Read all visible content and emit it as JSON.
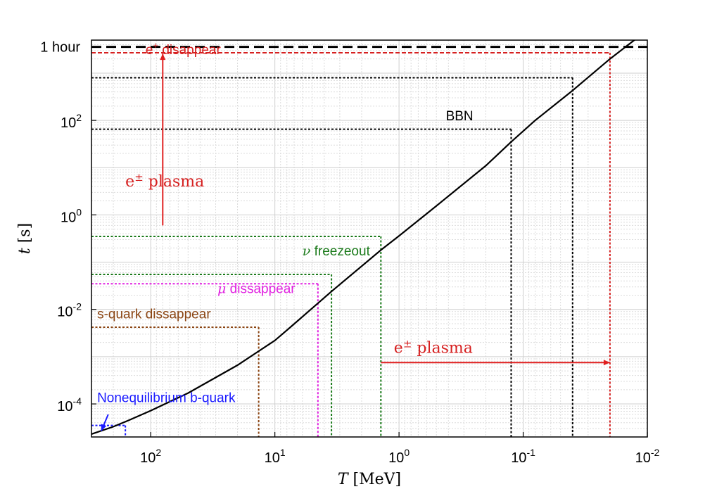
{
  "chart_data": {
    "type": "line",
    "title": "",
    "xlabel": "T [MeV]",
    "ylabel": "t [s]",
    "xscale": "log",
    "yscale": "log",
    "x_reversed": true,
    "xlim": [
      300,
      0.01
    ],
    "ylim": [
      2e-05,
      5000
    ],
    "grid": true,
    "x_ticks": [
      {
        "value": 100,
        "base": "10",
        "exp": "2"
      },
      {
        "value": 10,
        "base": "10",
        "exp": "1"
      },
      {
        "value": 1,
        "base": "10",
        "exp": "0"
      },
      {
        "value": 0.1,
        "base": "10",
        "exp": "-1"
      },
      {
        "value": 0.01,
        "base": "10",
        "exp": "-2"
      }
    ],
    "y_ticks": [
      {
        "value": 0.0001,
        "base": "10",
        "exp": "-4"
      },
      {
        "value": 0.01,
        "base": "10",
        "exp": "-2"
      },
      {
        "value": 1,
        "base": "10",
        "exp": "0"
      },
      {
        "value": 100,
        "base": "10",
        "exp": "2"
      },
      {
        "value": 3600,
        "label": "1 hour"
      }
    ],
    "series": [
      {
        "color": "#000000",
        "x": [
          300,
          200,
          150,
          100,
          50,
          20,
          10,
          7.5,
          3.5,
          1.4,
          1,
          0.5,
          0.2,
          0.125,
          0.08,
          0.04,
          0.02,
          0.013,
          0.01
        ],
        "y": [
          2.3e-05,
          3.3e-05,
          4.5e-05,
          7.2e-05,
          0.00017,
          0.00066,
          0.0022,
          0.0042,
          0.024,
          0.18,
          0.36,
          1.55,
          11,
          35,
          100,
          430,
          2000,
          4800,
          8000
        ]
      }
    ],
    "reference_lines": [
      {
        "kind": "h",
        "y": 3600,
        "style": "dashed",
        "color": "#000000",
        "width": 3
      },
      {
        "kind": "h",
        "y": 2700,
        "x_to": 0.02,
        "style": "dashed",
        "color": "#d62020"
      },
      {
        "kind": "v",
        "x": 0.02,
        "y_to": 2700,
        "style": "dotted",
        "color": "#d62020"
      },
      {
        "kind": "h",
        "y": 800,
        "x_to": 0.04,
        "style": "dotted",
        "color": "#000000"
      },
      {
        "kind": "v",
        "x": 0.04,
        "y_to": 800,
        "style": "dotted",
        "color": "#000000"
      },
      {
        "kind": "h",
        "y": 65,
        "x_to": 0.125,
        "style": "dotted",
        "color": "#000000"
      },
      {
        "kind": "v",
        "x": 0.125,
        "y_to": 65,
        "style": "dotted",
        "color": "#000000"
      },
      {
        "kind": "h",
        "y": 0.35,
        "x_to": 1.4,
        "style": "dotted",
        "color": "#1a7a1a"
      },
      {
        "kind": "v",
        "x": 1.4,
        "y_to": 0.35,
        "style": "dotted",
        "color": "#1a7a1a"
      },
      {
        "kind": "h",
        "y": 0.055,
        "x_to": 3.5,
        "style": "dotted",
        "color": "#1a7a1a"
      },
      {
        "kind": "v",
        "x": 3.5,
        "y_to": 0.055,
        "style": "dotted",
        "color": "#1a7a1a"
      },
      {
        "kind": "h",
        "y": 0.035,
        "x_to": 4.5,
        "style": "dotted",
        "color": "#e020e0"
      },
      {
        "kind": "v",
        "x": 4.5,
        "y_to": 0.035,
        "style": "dotted",
        "color": "#e020e0"
      },
      {
        "kind": "h",
        "y": 0.0042,
        "x_to": 13.5,
        "style": "dotted",
        "color": "#8b4513"
      },
      {
        "kind": "v",
        "x": 13.5,
        "y_to": 0.0042,
        "style": "dotted",
        "color": "#8b4513"
      },
      {
        "kind": "h",
        "y": 3.5e-05,
        "x_to": 160,
        "style": "dotted",
        "color": "#1a1aff"
      },
      {
        "kind": "v",
        "x": 160,
        "y_to": 3.5e-05,
        "style": "dotted",
        "color": "#1a1aff"
      }
    ],
    "arrows": [
      {
        "color": "#e02020",
        "x1": 80,
        "y1": 0.6,
        "x2": 80,
        "y2": 2600
      },
      {
        "color": "#e02020",
        "x1": 1.4,
        "y1": 0.00075,
        "x2": 0.02,
        "y2": 0.00075
      },
      {
        "color": "#1a1aff",
        "x1": 220,
        "y1": 6e-05,
        "x2": 250,
        "y2": 2.7e-05
      }
    ],
    "annotations": [
      {
        "text": "e",
        "sup": "+",
        "suffix": " disappear",
        "x": 110,
        "y": 2500,
        "color": "#d62020",
        "font": "sans"
      },
      {
        "text": "BBN",
        "x": 0.42,
        "y": 100,
        "color": "#000000",
        "font": "sans-large"
      },
      {
        "text": "e",
        "sup": "±",
        "suffix": " plasma",
        "x": 160,
        "y": 4,
        "color": "#d62020",
        "font": "serif"
      },
      {
        "text": "ν",
        "suffix": " freezeout",
        "x": 6.0,
        "y": 0.14,
        "color": "#1a7a1a",
        "font": "sans",
        "prefix_italic": true
      },
      {
        "text": "μ",
        "suffix": " dissappear",
        "x": 29,
        "y": 0.022,
        "color": "#e020e0",
        "font": "sans",
        "prefix_italic": true
      },
      {
        "text": "s-quark dissappear",
        "x": 270,
        "y": 0.0065,
        "color": "#8b4513",
        "font": "sans"
      },
      {
        "text": "e",
        "sup": "±",
        "suffix": " plasma",
        "x": 1.1,
        "y": 0.0012,
        "color": "#d62020",
        "font": "serif"
      },
      {
        "text": "Nonequilibrium b-quark",
        "x": 270,
        "y": 0.00011,
        "color": "#1a1aff",
        "font": "sans"
      }
    ]
  }
}
